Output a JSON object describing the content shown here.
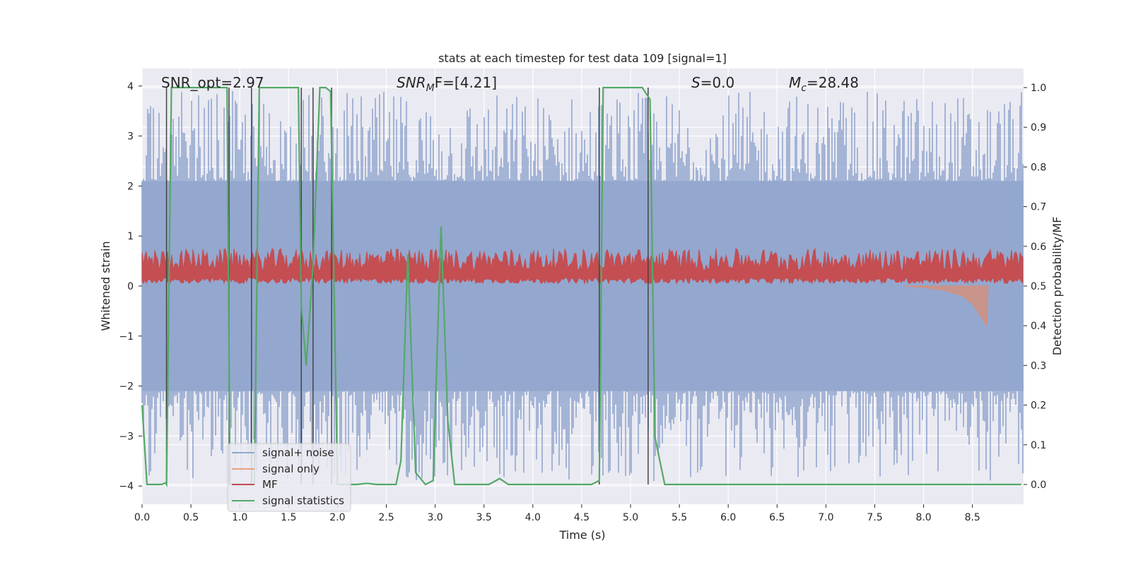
{
  "chart_data": {
    "type": "line",
    "title": "stats at each timestep for test data 109 [signal=1]",
    "xlabel": "Time (s)",
    "ylabel_left": "Whitened strain",
    "ylabel_right": "Detection probability/MF",
    "xlim": [
      0.0,
      9.0
    ],
    "ylim_left": [
      -4.35,
      4.35
    ],
    "ylim_right": [
      -0.05,
      1.05
    ],
    "x_ticks": [
      "0.0",
      "0.5",
      "1.0",
      "1.5",
      "2.0",
      "2.5",
      "3.0",
      "3.5",
      "4.0",
      "4.5",
      "5.0",
      "5.5",
      "6.0",
      "6.5",
      "7.0",
      "7.5",
      "8.0",
      "8.5"
    ],
    "y_ticks_left": [
      "4",
      "3",
      "2",
      "1",
      "0",
      "−1",
      "−2",
      "−3",
      "−4"
    ],
    "y_ticks_right": [
      "1.0",
      "0.9",
      "0.8",
      "0.7",
      "0.6",
      "0.5",
      "0.4",
      "0.3",
      "0.2",
      "0.1",
      "0.0"
    ],
    "grid": true,
    "annotations": {
      "snr_opt": "SNR_opt=2.97",
      "snr_mf_label": "SNR",
      "snr_mf_sub": "M",
      "snr_mf_rest": "F=[4.21]",
      "s_label": "S",
      "s_rest": "=0.0",
      "mc_label": "M",
      "mc_sub": "c",
      "mc_rest": "=28.48"
    },
    "legend": {
      "position": "lower-left",
      "entries": [
        {
          "name": "signal+ noise",
          "color": "#92A6CE"
        },
        {
          "name": "signal only",
          "color": "#E8A07E"
        },
        {
          "name": "MF",
          "color": "#C44E52"
        },
        {
          "name": "signal statistics",
          "color": "#55A868"
        }
      ]
    },
    "colors": {
      "background": "#EAEAF2",
      "noise": "#92A6CE",
      "signal": "#D98E74",
      "mf": "#C44E52",
      "stats": "#55A868",
      "vlines": "#444444"
    },
    "series": [
      {
        "name": "signal statistics",
        "axis": "right",
        "x": [
          0.0,
          0.05,
          0.2,
          0.24,
          0.25,
          0.3,
          0.87,
          0.9,
          0.95,
          1.12,
          1.15,
          1.2,
          1.6,
          1.63,
          1.68,
          1.75,
          1.82,
          1.88,
          1.93,
          2.0,
          2.2,
          2.3,
          2.4,
          2.6,
          2.65,
          2.72,
          2.8,
          2.9,
          2.98,
          3.06,
          3.13,
          3.2,
          3.3,
          3.55,
          3.66,
          3.75,
          4.6,
          4.68,
          4.72,
          5.12,
          5.2,
          5.25,
          5.35,
          6.0,
          9.0
        ],
        "values": [
          0.2,
          0.0,
          0.0,
          0.0045,
          0.0,
          1.0,
          1.0,
          0.0,
          0.0,
          0.0,
          0.0,
          1.0,
          1.0,
          0.45,
          0.3,
          0.55,
          1.0,
          1.0,
          0.99,
          0.0,
          0.0,
          0.003,
          0.0,
          0.0,
          0.06,
          0.58,
          0.03,
          0.0,
          0.01,
          0.65,
          0.16,
          0.0,
          0.0,
          0.0,
          0.015,
          0.0,
          0.0,
          0.01,
          1.0,
          1.0,
          0.97,
          0.12,
          0.0,
          0.0,
          0.0
        ]
      },
      {
        "name": "detection markers",
        "axis": "right",
        "x": [
          0.25,
          0.89,
          1.12,
          1.63,
          1.75,
          1.94,
          4.68,
          5.18
        ],
        "values": [
          1.0,
          1.0,
          1.0,
          1.0,
          1.0,
          1.0,
          1.0,
          1.0
        ]
      },
      {
        "name": "signal+ noise",
        "axis": "left",
        "envelope_upper": 2.1,
        "envelope_lower": -2.1,
        "peak_max": 3.9,
        "peak_min": -3.9
      },
      {
        "name": "MF",
        "axis": "left",
        "band": [
          0.05,
          0.75
        ]
      },
      {
        "name": "signal only",
        "axis": "left",
        "x": [
          7.8,
          8.0,
          8.2,
          8.4,
          8.5,
          8.6,
          8.65,
          8.66
        ],
        "lower": [
          0.0,
          -0.03,
          -0.08,
          -0.2,
          -0.35,
          -0.65,
          -0.8,
          0.0
        ]
      }
    ]
  }
}
